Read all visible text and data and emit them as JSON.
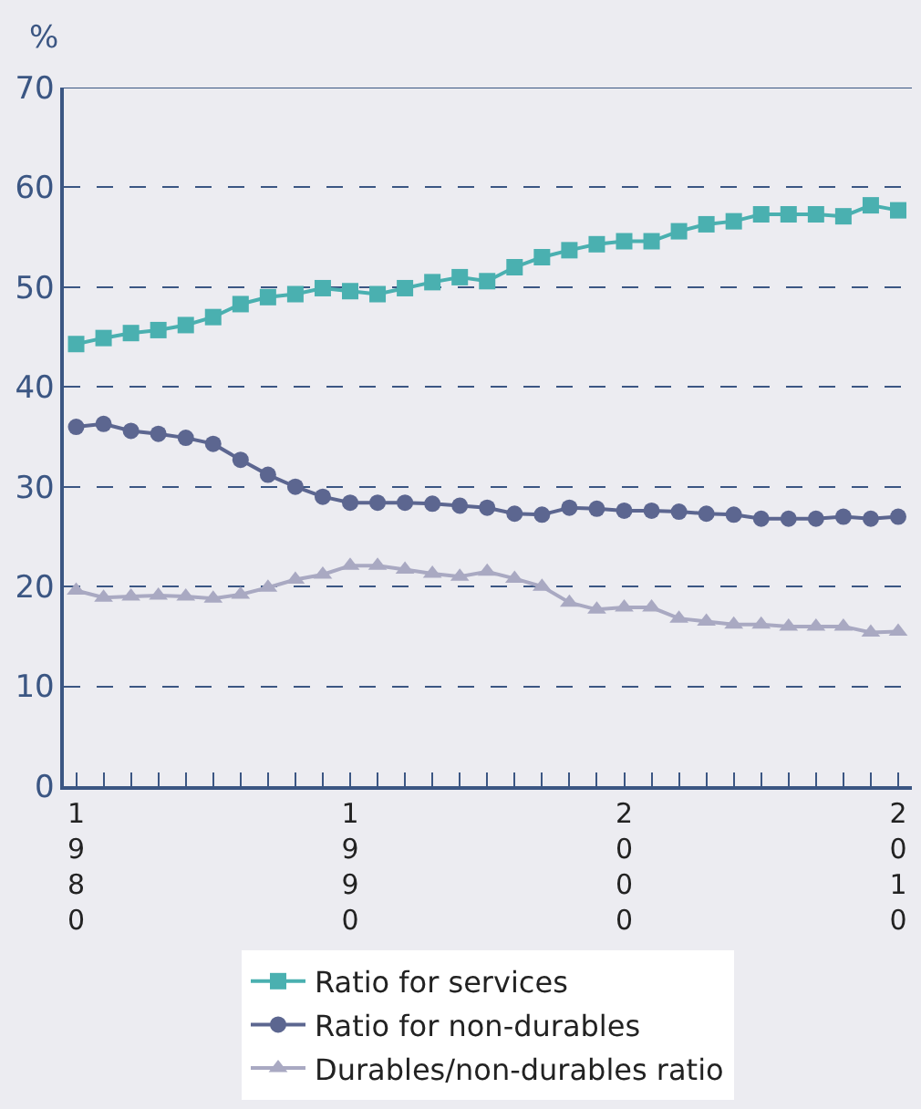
{
  "chart_data": {
    "type": "line",
    "ylabel": "%",
    "x": [
      1980,
      1981,
      1982,
      1983,
      1984,
      1985,
      1986,
      1987,
      1988,
      1989,
      1990,
      1991,
      1992,
      1993,
      1994,
      1995,
      1996,
      1997,
      1998,
      1999,
      2000,
      2001,
      2002,
      2003,
      2004,
      2005,
      2006,
      2007,
      2008,
      2009,
      2010
    ],
    "xlim": [
      1979.55,
      2010.5
    ],
    "xticks": [
      1980,
      1990,
      2000,
      2010
    ],
    "ylim": [
      0,
      70
    ],
    "yticks": [
      0,
      10,
      20,
      30,
      40,
      50,
      60,
      70
    ],
    "grid": "y",
    "line_style": "solid",
    "legend": "bottom",
    "series": [
      {
        "name": "Ratio for services",
        "color": "#4ab0b0",
        "marker": "square",
        "values": [
          44.3,
          44.9,
          45.4,
          45.7,
          46.2,
          47.0,
          48.3,
          49.0,
          49.3,
          49.9,
          49.6,
          49.3,
          49.9,
          50.5,
          51.0,
          50.6,
          52.0,
          53.0,
          53.7,
          54.3,
          54.6,
          54.6,
          55.6,
          56.3,
          56.6,
          57.3,
          57.3,
          57.3,
          57.1,
          58.2,
          57.7
        ]
      },
      {
        "name": "Ratio for non-durables",
        "color": "#5c6690",
        "marker": "circle",
        "values": [
          36.0,
          36.3,
          35.6,
          35.3,
          34.9,
          34.3,
          32.7,
          31.2,
          30.0,
          29.0,
          28.4,
          28.4,
          28.4,
          28.3,
          28.1,
          27.9,
          27.3,
          27.2,
          27.9,
          27.8,
          27.6,
          27.6,
          27.5,
          27.3,
          27.2,
          26.8,
          26.8,
          26.8,
          27.0,
          26.8,
          27.0
        ]
      },
      {
        "name": "Durables/non-durables ratio",
        "color": "#a9a9c2",
        "marker": "triangle",
        "values": [
          19.6,
          18.9,
          19.0,
          19.1,
          19.0,
          18.8,
          19.2,
          19.9,
          20.7,
          21.2,
          22.1,
          22.1,
          21.7,
          21.3,
          21.0,
          21.5,
          20.8,
          20.0,
          18.4,
          17.7,
          17.9,
          17.9,
          16.8,
          16.5,
          16.2,
          16.2,
          16.0,
          16.0,
          16.0,
          15.4,
          15.5
        ]
      }
    ]
  }
}
